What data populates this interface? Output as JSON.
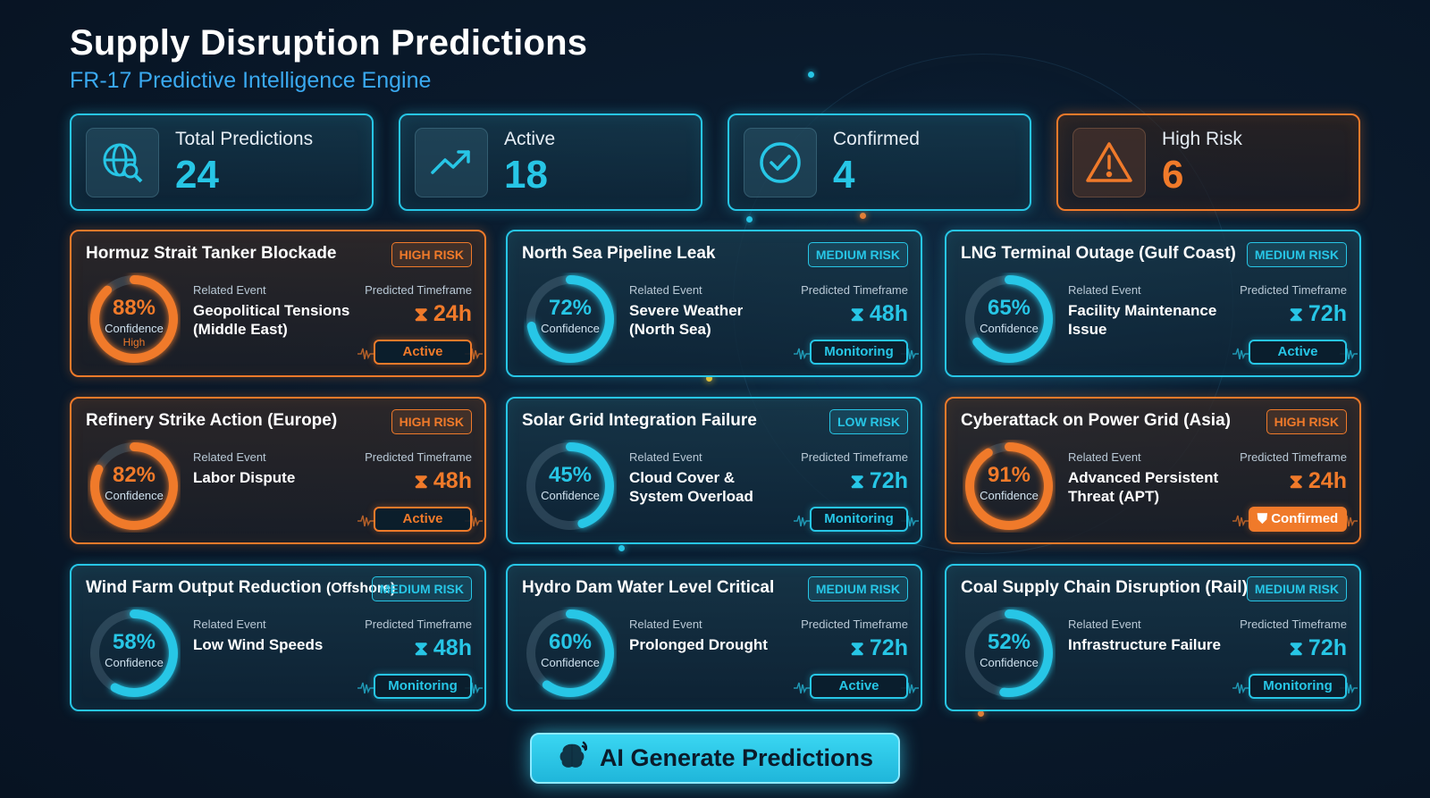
{
  "header": {
    "title": "Supply Disruption Predictions",
    "subtitle": "FR-17 Predictive Intelligence Engine"
  },
  "stats": [
    {
      "label": "Total Predictions",
      "value": "24",
      "icon": "globe-search-icon"
    },
    {
      "label": "Active",
      "value": "18",
      "icon": "trend-up-icon"
    },
    {
      "label": "Confirmed",
      "value": "4",
      "icon": "check-circle-icon"
    },
    {
      "label": "High Risk",
      "value": "6",
      "icon": "warning-icon"
    }
  ],
  "common": {
    "related_label": "Related Event",
    "timeframe_label": "Predicted Timeframe",
    "confidence_label": "Confidence"
  },
  "cards": [
    {
      "title": "Hormuz Strait Tanker Blockade",
      "title_suffix": "",
      "risk": "HIGH RISK",
      "confidence": "88%",
      "confidence_fraction": 0.88,
      "sub": "High",
      "event": "Geopolitical Tensions (Middle East)",
      "timeframe": "24h",
      "status": "Active"
    },
    {
      "title": "North Sea Pipeline Leak",
      "title_suffix": "",
      "risk": "MEDIUM RISK",
      "confidence": "72%",
      "confidence_fraction": 0.72,
      "sub": "",
      "event": "Severe Weather (North Sea)",
      "timeframe": "48h",
      "status": "Monitoring"
    },
    {
      "title": "LNG Terminal Outage (Gulf Coast)",
      "title_suffix": "",
      "risk": "MEDIUM RISK",
      "confidence": "65%",
      "confidence_fraction": 0.65,
      "sub": "",
      "event": "Facility Maintenance Issue",
      "timeframe": "72h",
      "status": "Active"
    },
    {
      "title": "Refinery Strike Action (Europe)",
      "title_suffix": "",
      "risk": "HIGH RISK",
      "confidence": "82%",
      "confidence_fraction": 0.82,
      "sub": "",
      "event": "Labor Dispute",
      "timeframe": "48h",
      "status": "Active"
    },
    {
      "title": "Solar Grid Integration Failure",
      "title_suffix": "",
      "risk": "LOW RISK",
      "confidence": "45%",
      "confidence_fraction": 0.45,
      "sub": "",
      "event": "Cloud Cover & System Overload",
      "timeframe": "72h",
      "status": "Monitoring"
    },
    {
      "title": "Cyberattack on Power Grid (Asia)",
      "title_suffix": "",
      "risk": "HIGH RISK",
      "confidence": "91%",
      "confidence_fraction": 0.91,
      "sub": "",
      "event": "Advanced Persistent Threat (APT)",
      "timeframe": "24h",
      "status": "Confirmed"
    },
    {
      "title": "Wind Farm Output Reduction",
      "title_suffix": "(Offshore)",
      "risk": "MEDIUM RISK",
      "confidence": "58%",
      "confidence_fraction": 0.58,
      "sub": "",
      "event": "Low Wind Speeds",
      "timeframe": "48h",
      "status": "Monitoring"
    },
    {
      "title": "Hydro Dam Water Level Critical",
      "title_suffix": "",
      "risk": "MEDIUM RISK",
      "confidence": "60%",
      "confidence_fraction": 0.6,
      "sub": "",
      "event": "Prolonged Drought",
      "timeframe": "72h",
      "status": "Active"
    },
    {
      "title": "Coal Supply Chain Disruption (Rail)",
      "title_suffix": "",
      "risk": "MEDIUM RISK",
      "confidence": "52%",
      "confidence_fraction": 0.52,
      "sub": "",
      "event": "Infrastructure Failure",
      "timeframe": "72h",
      "status": "Monitoring"
    }
  ],
  "action": {
    "label": "AI Generate Predictions",
    "icon": "brain-icon"
  },
  "colors": {
    "accent": "#27c6e6",
    "high_risk": "#f07a2a",
    "background": "#0a1a2c"
  }
}
